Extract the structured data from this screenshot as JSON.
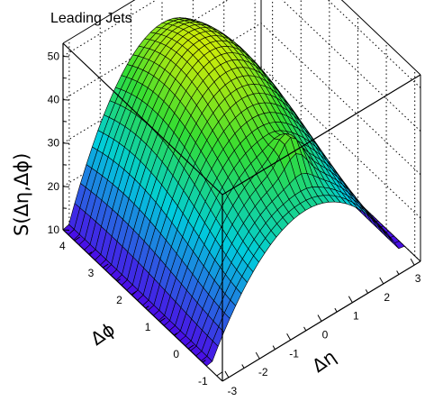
{
  "chart_data": {
    "type": "surface",
    "title": "Leading Jets",
    "zlabel": "S(Δη,Δϕ)",
    "x_label": "Δϕ",
    "y_label": "Δη",
    "x_range": [
      -1.2,
      4.4
    ],
    "y_range": [
      -3.2,
      3.2
    ],
    "z_range": [
      10,
      53
    ],
    "x_ticks": [
      "-1",
      "0",
      "1",
      "2",
      "3",
      "4"
    ],
    "y_ticks": [
      "-3",
      "-2",
      "-1",
      "0",
      "1",
      "2",
      "3"
    ],
    "z_ticks": [
      "10",
      "20",
      "30",
      "40",
      "50"
    ],
    "grid": true,
    "surface_model": {
      "description": "approximate values read from surface: peak ~48 near (Δϕ≈3, Δη≈0), ~10 at |Δη|=3, local bump ~34 near (Δϕ≈0.3, Δη≈0.4)",
      "eta_edge_value": 10,
      "phi_peak": 3.0,
      "phi_min_value_ratio": 0.58,
      "peak_value": 48,
      "bump": {
        "phi": 0.3,
        "eta": 0.4,
        "height": 6
      }
    },
    "colors": {
      "low": "#4a0ee6",
      "mid_low": "#00ccdd",
      "mid": "#33dd33",
      "high": "#eeee00"
    }
  }
}
